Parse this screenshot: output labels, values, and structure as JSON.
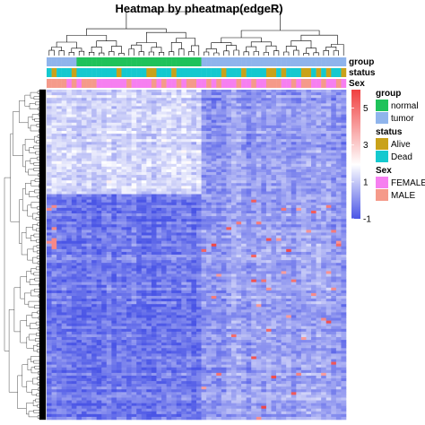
{
  "chart_data": {
    "type": "heatmap",
    "title": "Heatmap by pheatmap(edgeR)",
    "annotation_rows": [
      "group",
      "status",
      "Sex"
    ],
    "colorbar": {
      "ticks": [
        5,
        3,
        1,
        -1
      ],
      "range": [
        -1,
        6
      ],
      "colors": {
        "low": "#4a55e6",
        "mid": "#ffffff",
        "high": "#f04040"
      }
    },
    "legends": [
      {
        "title": "group",
        "items": [
          {
            "label": "normal",
            "color": "#1fc25a"
          },
          {
            "label": "tumor",
            "color": "#8fb4ec"
          }
        ]
      },
      {
        "title": "status",
        "items": [
          {
            "label": "Alive",
            "color": "#c9a21a"
          },
          {
            "label": "Dead",
            "color": "#14c9cf"
          }
        ]
      },
      {
        "title": "Sex",
        "items": [
          {
            "label": "FEMALE",
            "color": "#f67ff0"
          },
          {
            "label": "MALE",
            "color": "#f59a8a"
          }
        ]
      }
    ]
  }
}
